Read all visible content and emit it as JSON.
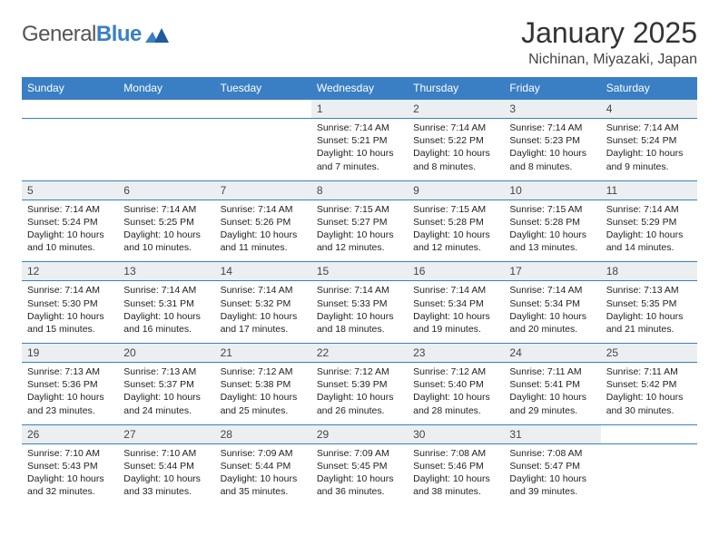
{
  "logo": {
    "text_a": "General",
    "text_b": "Blue"
  },
  "title": "January 2025",
  "location": "Nichinan, Miyazaki, Japan",
  "colors": {
    "header_bg": "#3a7fc4",
    "header_text": "#ffffff",
    "daynum_bg": "#eceff1",
    "border": "#3a7fc4",
    "page_bg": "#ffffff",
    "text": "#222222",
    "title_text": "#333333"
  },
  "typography": {
    "title_fontsize": 32,
    "location_fontsize": 16,
    "weekday_fontsize": 12,
    "daynum_fontsize": 12,
    "detail_fontsize": 10.5
  },
  "weekdays": [
    "Sunday",
    "Monday",
    "Tuesday",
    "Wednesday",
    "Thursday",
    "Friday",
    "Saturday"
  ],
  "weeks": [
    [
      null,
      null,
      null,
      {
        "n": "1",
        "sunrise": "7:14 AM",
        "sunset": "5:21 PM",
        "daylight": "10 hours and 7 minutes."
      },
      {
        "n": "2",
        "sunrise": "7:14 AM",
        "sunset": "5:22 PM",
        "daylight": "10 hours and 8 minutes."
      },
      {
        "n": "3",
        "sunrise": "7:14 AM",
        "sunset": "5:23 PM",
        "daylight": "10 hours and 8 minutes."
      },
      {
        "n": "4",
        "sunrise": "7:14 AM",
        "sunset": "5:24 PM",
        "daylight": "10 hours and 9 minutes."
      }
    ],
    [
      {
        "n": "5",
        "sunrise": "7:14 AM",
        "sunset": "5:24 PM",
        "daylight": "10 hours and 10 minutes."
      },
      {
        "n": "6",
        "sunrise": "7:14 AM",
        "sunset": "5:25 PM",
        "daylight": "10 hours and 10 minutes."
      },
      {
        "n": "7",
        "sunrise": "7:14 AM",
        "sunset": "5:26 PM",
        "daylight": "10 hours and 11 minutes."
      },
      {
        "n": "8",
        "sunrise": "7:15 AM",
        "sunset": "5:27 PM",
        "daylight": "10 hours and 12 minutes."
      },
      {
        "n": "9",
        "sunrise": "7:15 AM",
        "sunset": "5:28 PM",
        "daylight": "10 hours and 12 minutes."
      },
      {
        "n": "10",
        "sunrise": "7:15 AM",
        "sunset": "5:28 PM",
        "daylight": "10 hours and 13 minutes."
      },
      {
        "n": "11",
        "sunrise": "7:14 AM",
        "sunset": "5:29 PM",
        "daylight": "10 hours and 14 minutes."
      }
    ],
    [
      {
        "n": "12",
        "sunrise": "7:14 AM",
        "sunset": "5:30 PM",
        "daylight": "10 hours and 15 minutes."
      },
      {
        "n": "13",
        "sunrise": "7:14 AM",
        "sunset": "5:31 PM",
        "daylight": "10 hours and 16 minutes."
      },
      {
        "n": "14",
        "sunrise": "7:14 AM",
        "sunset": "5:32 PM",
        "daylight": "10 hours and 17 minutes."
      },
      {
        "n": "15",
        "sunrise": "7:14 AM",
        "sunset": "5:33 PM",
        "daylight": "10 hours and 18 minutes."
      },
      {
        "n": "16",
        "sunrise": "7:14 AM",
        "sunset": "5:34 PM",
        "daylight": "10 hours and 19 minutes."
      },
      {
        "n": "17",
        "sunrise": "7:14 AM",
        "sunset": "5:34 PM",
        "daylight": "10 hours and 20 minutes."
      },
      {
        "n": "18",
        "sunrise": "7:13 AM",
        "sunset": "5:35 PM",
        "daylight": "10 hours and 21 minutes."
      }
    ],
    [
      {
        "n": "19",
        "sunrise": "7:13 AM",
        "sunset": "5:36 PM",
        "daylight": "10 hours and 23 minutes."
      },
      {
        "n": "20",
        "sunrise": "7:13 AM",
        "sunset": "5:37 PM",
        "daylight": "10 hours and 24 minutes."
      },
      {
        "n": "21",
        "sunrise": "7:12 AM",
        "sunset": "5:38 PM",
        "daylight": "10 hours and 25 minutes."
      },
      {
        "n": "22",
        "sunrise": "7:12 AM",
        "sunset": "5:39 PM",
        "daylight": "10 hours and 26 minutes."
      },
      {
        "n": "23",
        "sunrise": "7:12 AM",
        "sunset": "5:40 PM",
        "daylight": "10 hours and 28 minutes."
      },
      {
        "n": "24",
        "sunrise": "7:11 AM",
        "sunset": "5:41 PM",
        "daylight": "10 hours and 29 minutes."
      },
      {
        "n": "25",
        "sunrise": "7:11 AM",
        "sunset": "5:42 PM",
        "daylight": "10 hours and 30 minutes."
      }
    ],
    [
      {
        "n": "26",
        "sunrise": "7:10 AM",
        "sunset": "5:43 PM",
        "daylight": "10 hours and 32 minutes."
      },
      {
        "n": "27",
        "sunrise": "7:10 AM",
        "sunset": "5:44 PM",
        "daylight": "10 hours and 33 minutes."
      },
      {
        "n": "28",
        "sunrise": "7:09 AM",
        "sunset": "5:44 PM",
        "daylight": "10 hours and 35 minutes."
      },
      {
        "n": "29",
        "sunrise": "7:09 AM",
        "sunset": "5:45 PM",
        "daylight": "10 hours and 36 minutes."
      },
      {
        "n": "30",
        "sunrise": "7:08 AM",
        "sunset": "5:46 PM",
        "daylight": "10 hours and 38 minutes."
      },
      {
        "n": "31",
        "sunrise": "7:08 AM",
        "sunset": "5:47 PM",
        "daylight": "10 hours and 39 minutes."
      },
      null
    ]
  ],
  "labels": {
    "sunrise": "Sunrise:",
    "sunset": "Sunset:",
    "daylight": "Daylight:"
  }
}
